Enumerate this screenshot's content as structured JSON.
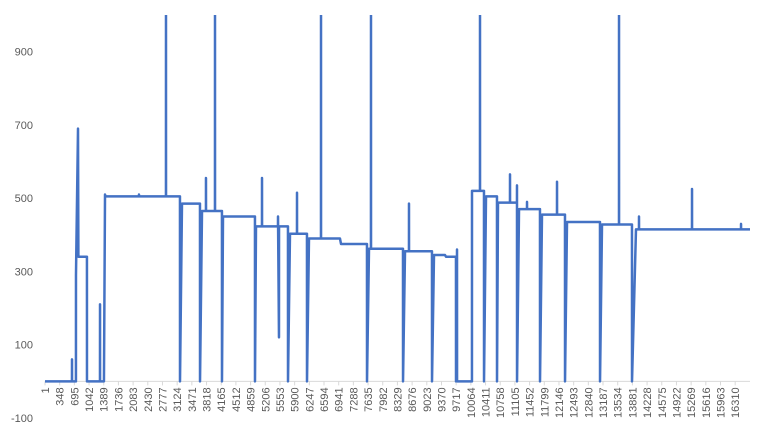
{
  "chart_data": {
    "type": "line",
    "x": [
      1,
      638,
      639,
      640,
      732,
      733,
      781,
      790,
      992,
      993,
      1300,
      1301,
      1302,
      1394,
      1419,
      1430,
      2221,
      2222,
      2223,
      2859,
      2860,
      2861,
      3190,
      3191,
      3238,
      3663,
      3664,
      3711,
      3804,
      3805,
      3806,
      4017,
      4018,
      4019,
      4182,
      4183,
      4207,
      4962,
      4963,
      4987,
      5128,
      5129,
      5130,
      5506,
      5507,
      5530,
      5531,
      5742,
      5743,
      5790,
      5955,
      5956,
      5957,
      6191,
      6192,
      6239,
      6522,
      6523,
      6524,
      6971,
      6996,
      7609,
      7610,
      7657,
      7703,
      7704,
      7705,
      8460,
      8461,
      8508,
      8601,
      8602,
      8603,
      9145,
      9146,
      9193,
      9452,
      9477,
      9712,
      9713,
      9737,
      9738,
      10090,
      10091,
      10279,
      10280,
      10281,
      10374,
      10375,
      10422,
      10681,
      10682,
      10705,
      10988,
      10989,
      10990,
      11153,
      11154,
      11155,
      11202,
      11390,
      11391,
      11392,
      11697,
      11698,
      11745,
      12099,
      12100,
      12101,
      12288,
      12289,
      12336,
      13115,
      13116,
      13163,
      13564,
      13565,
      13566,
      13871,
      13872,
      13966,
      14036,
      14037,
      14038,
      15289,
      15290,
      15291,
      16447,
      16448,
      16449,
      16660
    ],
    "series": [
      {
        "color": "#4472c4",
        "values": [
          0,
          0,
          60,
          0,
          0,
          290,
          690,
          340,
          340,
          0,
          0,
          210,
          0,
          0,
          510,
          505,
          505,
          510,
          505,
          505,
          1000,
          505,
          505,
          0,
          485,
          485,
          0,
          465,
          465,
          555,
          465,
          465,
          1000,
          465,
          465,
          0,
          450,
          450,
          0,
          423,
          423,
          555,
          423,
          423,
          450,
          120,
          423,
          423,
          0,
          403,
          403,
          515,
          403,
          403,
          0,
          390,
          390,
          1000,
          390,
          390,
          375,
          375,
          0,
          362,
          362,
          1000,
          362,
          362,
          0,
          355,
          355,
          485,
          355,
          355,
          0,
          345,
          345,
          340,
          340,
          0,
          360,
          0,
          0,
          520,
          520,
          1000,
          520,
          520,
          0,
          505,
          505,
          0,
          488,
          488,
          565,
          488,
          488,
          535,
          0,
          470,
          470,
          490,
          470,
          470,
          0,
          455,
          455,
          545,
          455,
          455,
          0,
          435,
          435,
          0,
          428,
          428,
          1000,
          428,
          428,
          0,
          415,
          415,
          450,
          415,
          415,
          525,
          415,
          415,
          430,
          415,
          415
        ]
      }
    ],
    "xlim": [
      1,
      16660
    ],
    "xticks": [
      1,
      348,
      695,
      1042,
      1389,
      1736,
      2083,
      2430,
      2777,
      3124,
      3471,
      3818,
      4165,
      4512,
      4859,
      5206,
      5553,
      5900,
      6247,
      6594,
      6941,
      7288,
      7635,
      7982,
      8329,
      8676,
      9023,
      9370,
      9717,
      10064,
      10411,
      10758,
      11105,
      11452,
      11799,
      12146,
      12493,
      12840,
      13187,
      13534,
      13881,
      14228,
      14575,
      14922,
      15269,
      15616,
      15963,
      16310
    ],
    "ylim": [
      -100,
      1000
    ],
    "yticks": [
      -100,
      100,
      300,
      500,
      700,
      900
    ]
  }
}
